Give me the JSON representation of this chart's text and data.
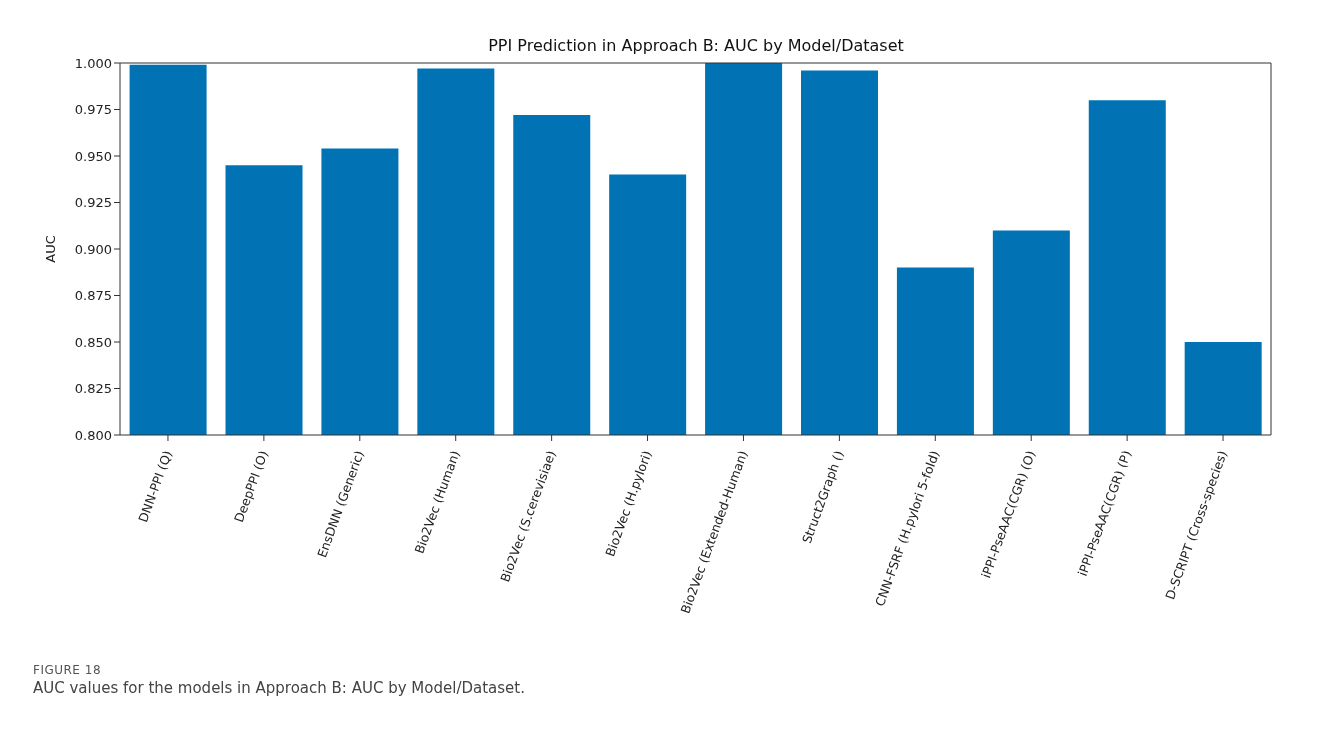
{
  "chart_data": {
    "type": "bar",
    "title": "PPI Prediction in Approach B: AUC by Model/Dataset",
    "ylabel": "AUC",
    "categories": [
      "DNN-PPI (Q)",
      "DeepPPI (O)",
      "EnsDNN (Generic)",
      "Bio2Vec (Human)",
      "Bio2Vec (S.cerevisiae)",
      "Bio2Vec (H.pylori)",
      "Bio2Vec (Extended-Human)",
      "Struct2Graph ()",
      "CNN-FSRF (H.pylori 5-fold)",
      "iPPI-PseAAC(CGR) (O)",
      "iPPI-PseAAC(CGR) (P)",
      "D-SCRIPT (Cross-species)"
    ],
    "values": [
      0.999,
      0.945,
      0.954,
      0.997,
      0.972,
      0.94,
      1.0,
      0.996,
      0.89,
      0.91,
      0.98,
      0.85
    ],
    "color": "#0173b5",
    "ylim": [
      0.8,
      1.0
    ],
    "yticks": [
      {
        "value": 0.8,
        "label": "0.800"
      },
      {
        "value": 0.825,
        "label": "0.825"
      },
      {
        "value": 0.85,
        "label": "0.850"
      },
      {
        "value": 0.875,
        "label": "0.875"
      },
      {
        "value": 0.9,
        "label": "0.900"
      },
      {
        "value": 0.925,
        "label": "0.925"
      },
      {
        "value": 0.95,
        "label": "0.950"
      },
      {
        "value": 0.975,
        "label": "0.975"
      },
      {
        "value": 1.0,
        "label": "1.000"
      }
    ],
    "annotations": [
      "FIGURE 18",
      "AUC values for the models in Approach B: AUC by Model/Dataset."
    ]
  }
}
